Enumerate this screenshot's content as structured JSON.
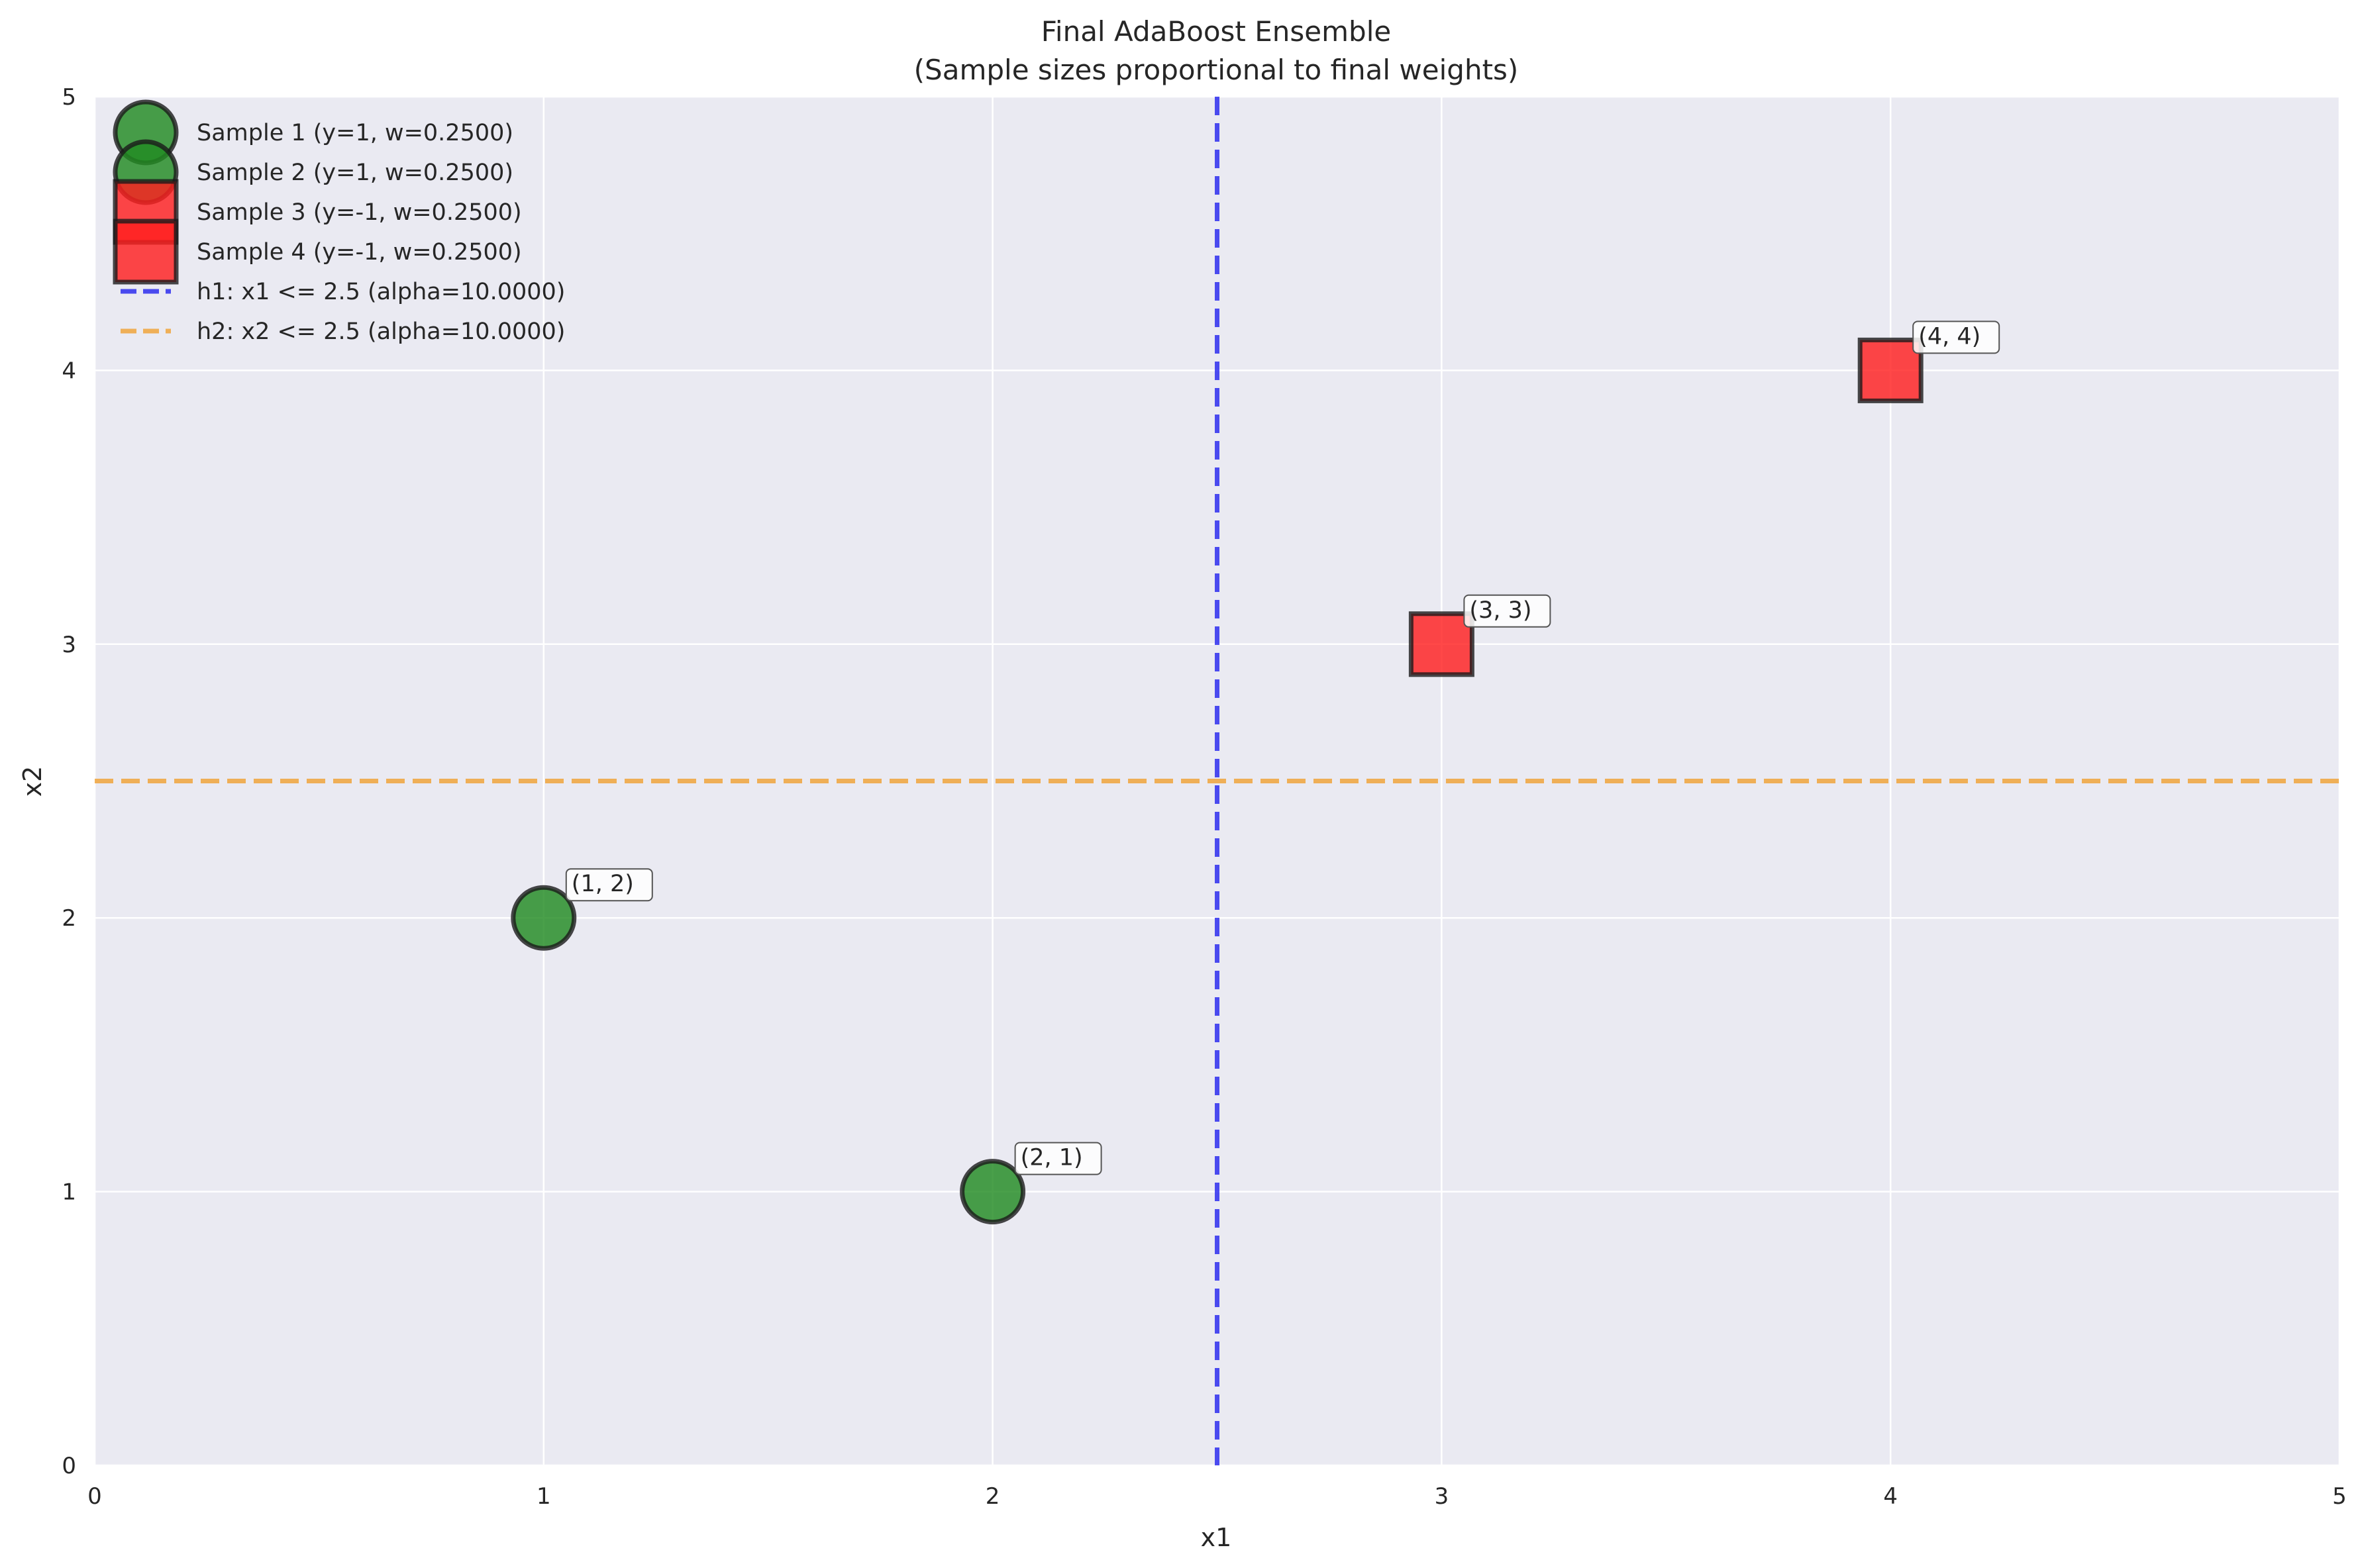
{
  "chart_data": {
    "type": "scatter",
    "title_line1": "Final AdaBoost Ensemble",
    "title_line2": "(Sample sizes proportional to final weights)",
    "xlabel": "x1",
    "ylabel": "x2",
    "xlim": [
      0,
      5
    ],
    "ylim": [
      0,
      5
    ],
    "xticks": [
      "0",
      "1",
      "2",
      "3",
      "4",
      "5"
    ],
    "yticks": [
      "0",
      "1",
      "2",
      "3",
      "4",
      "5"
    ],
    "grid": true,
    "legend_position": "top-left",
    "samples": [
      {
        "label": "Sample 1 (y=1, w=0.2500)",
        "x": 1,
        "y": 2,
        "class": 1,
        "weight": 0.25,
        "marker": "circle",
        "color": "#228b22",
        "annotation": "(1, 2)"
      },
      {
        "label": "Sample 2 (y=1, w=0.2500)",
        "x": 2,
        "y": 1,
        "class": 1,
        "weight": 0.25,
        "marker": "circle",
        "color": "#228b22",
        "annotation": "(2, 1)"
      },
      {
        "label": "Sample 3 (y=-1, w=0.2500)",
        "x": 3,
        "y": 3,
        "class": -1,
        "weight": 0.25,
        "marker": "square",
        "color": "#ff2020",
        "annotation": "(3, 3)"
      },
      {
        "label": "Sample 4 (y=-1, w=0.2500)",
        "x": 4,
        "y": 4,
        "class": -1,
        "weight": 0.25,
        "marker": "square",
        "color": "#ff2020",
        "annotation": "(4, 4)"
      }
    ],
    "stumps": [
      {
        "label": "h1: x1 <= 2.5 (alpha=10.0000)",
        "feature": "x1",
        "threshold": 2.5,
        "alpha": 10.0,
        "orientation": "vertical",
        "color": "#2222ee"
      },
      {
        "label": "h2: x2 <= 2.5 (alpha=10.0000)",
        "feature": "x2",
        "threshold": 2.5,
        "alpha": 10.0,
        "orientation": "horizontal",
        "color": "#f0a030"
      }
    ],
    "colors": {
      "background": "#eaeaf2",
      "grid": "#ffffff"
    }
  }
}
